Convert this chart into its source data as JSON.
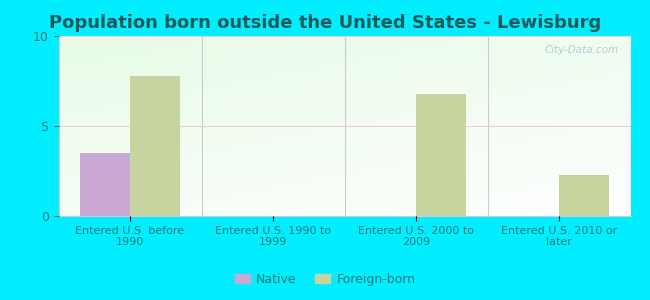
{
  "title": "Population born outside the United States - Lewisburg",
  "categories": [
    "Entered U.S. before\n1990",
    "Entered U.S. 1990 to\n1999",
    "Entered U.S. 2000 to\n2009",
    "Entered U.S. 2010 or\nlater"
  ],
  "native_values": [
    3.5,
    0,
    0,
    0
  ],
  "foreign_values": [
    7.8,
    0,
    6.8,
    2.3
  ],
  "native_color": "#c9a8d4",
  "foreign_color": "#c8d4a0",
  "ylim": [
    0,
    10
  ],
  "yticks": [
    0,
    5,
    10
  ],
  "background_outer": "#00eeff",
  "background_inner_top": "#d8edda",
  "background_inner_bottom": "#f8fff8",
  "title_color": "#1a5a5a",
  "tick_color": "#1a7a7a",
  "title_fontsize": 13,
  "tick_label_fontsize": 8,
  "bar_width": 0.35,
  "watermark": "City-Data.com",
  "legend_native": "Native",
  "legend_foreign": "Foreign-born"
}
